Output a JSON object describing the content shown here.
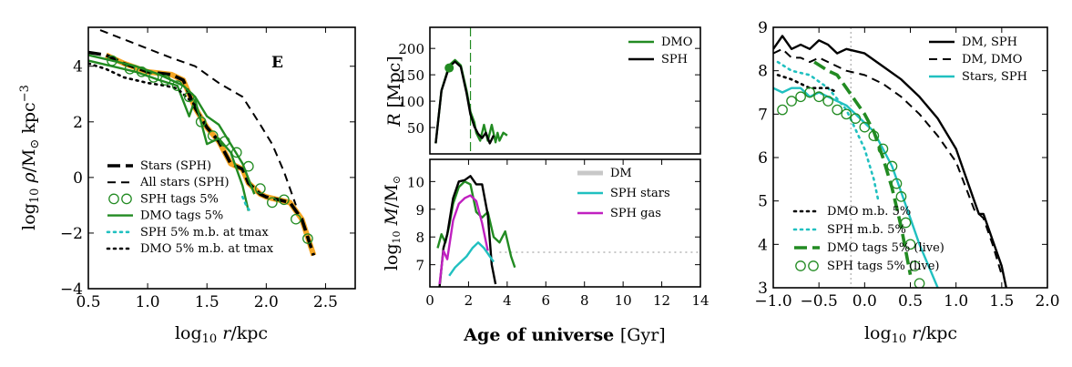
{
  "chart_data": [
    {
      "id": "density",
      "type": "line",
      "xlabel": "log10 r/kpc",
      "ylabel": "log10 ρ/M⊙ kpc−3",
      "annotation": "E",
      "xlim": [
        0.5,
        2.75
      ],
      "ylim": [
        -4,
        5.4
      ],
      "xticks": [
        0.5,
        1.0,
        1.5,
        2.0,
        2.5
      ],
      "xtick_labels": [
        "0.5",
        "1.0",
        "1.5",
        "2.0",
        "2.5"
      ],
      "yticks": [
        -4,
        -2,
        0,
        2,
        4
      ],
      "ytick_labels": [
        "−4",
        "−2",
        "0",
        "2",
        "4"
      ],
      "legend": [
        "Stars (SPH)",
        "All stars (SPH)",
        "SPH tags 5%",
        "DMO tags 5%",
        "SPH 5% m.b. at tmax",
        "DMO 5% m.b. at tmax"
      ],
      "series": [
        {
          "name": "All stars (SPH)",
          "style": "dashed",
          "color": "#000000",
          "x": [
            0.6,
            0.9,
            1.2,
            1.4,
            1.6,
            1.8,
            1.95,
            2.05,
            2.15,
            2.25
          ],
          "y": [
            5.3,
            4.8,
            4.3,
            4.0,
            3.4,
            2.9,
            1.9,
            1.2,
            0.2,
            -1.0
          ]
        },
        {
          "name": "Stars (SPH) highlight",
          "style": "solid-thick",
          "color": "#f5a623",
          "x": [
            0.65,
            0.8,
            1.0,
            1.2,
            1.3,
            1.4,
            1.5,
            1.6,
            1.7,
            1.8,
            1.85,
            1.95,
            2.0,
            2.1,
            2.2,
            2.3,
            2.4
          ],
          "y": [
            4.4,
            4.1,
            3.8,
            3.7,
            3.5,
            2.5,
            1.8,
            1.3,
            0.5,
            0.3,
            -0.2,
            -0.6,
            -0.7,
            -0.8,
            -0.9,
            -1.5,
            -2.8
          ]
        },
        {
          "name": "Stars (SPH)",
          "style": "dashed-thick",
          "color": "#000000",
          "x": [
            0.5,
            0.65,
            0.8,
            1.0,
            1.2,
            1.3,
            1.4,
            1.5,
            1.6,
            1.7,
            1.8,
            1.85,
            1.95,
            2.0,
            2.1,
            2.2,
            2.3,
            2.4
          ],
          "y": [
            4.5,
            4.4,
            4.1,
            3.8,
            3.7,
            3.5,
            2.5,
            1.8,
            1.3,
            0.5,
            0.3,
            -0.2,
            -0.6,
            -0.7,
            -0.8,
            -0.9,
            -1.5,
            -2.8
          ]
        },
        {
          "name": "DMO tags 5%",
          "style": "solid",
          "color": "#228b22",
          "x": [
            0.5,
            0.7,
            0.9,
            1.1,
            1.25,
            1.35,
            1.4,
            1.45,
            1.5,
            1.6,
            1.7,
            1.8,
            1.85
          ],
          "y": [
            4.2,
            4.0,
            3.8,
            3.5,
            3.3,
            2.2,
            2.8,
            2.0,
            1.2,
            1.4,
            0.9,
            -0.3,
            -1.2
          ]
        },
        {
          "name": "DMO tags 5% (b)",
          "style": "solid",
          "color": "#228b22",
          "x": [
            0.5,
            0.7,
            0.9,
            1.1,
            1.2,
            1.3,
            1.4,
            1.5,
            1.6,
            1.7,
            1.8,
            1.9
          ],
          "y": [
            4.4,
            4.2,
            4.0,
            3.7,
            3.5,
            3.3,
            2.9,
            2.2,
            1.9,
            1.2,
            0.5,
            -0.6
          ]
        },
        {
          "name": "DMO 5% m.b. at tmax",
          "style": "dotted",
          "color": "#000000",
          "x": [
            0.5,
            0.65,
            0.8,
            1.0,
            1.15,
            1.25,
            1.4
          ],
          "y": [
            4.1,
            3.9,
            3.6,
            3.4,
            3.3,
            3.2,
            2.6
          ]
        },
        {
          "name": "SPH 5% m.b. at tmax",
          "style": "dotted",
          "color": "#20c0c0",
          "x": [
            1.8,
            1.83,
            1.86
          ],
          "y": [
            -0.7,
            -1.0,
            -1.2
          ]
        },
        {
          "name": "SPH tags 5%",
          "style": "circles",
          "color": "#228b22",
          "x": [
            0.7,
            0.85,
            0.95,
            1.05,
            1.15,
            1.25,
            1.35,
            1.45,
            1.55,
            1.65,
            1.75,
            1.85,
            1.95,
            2.05,
            2.15,
            2.25,
            2.35
          ],
          "y": [
            4.2,
            3.9,
            3.8,
            3.6,
            3.5,
            3.3,
            2.9,
            2.0,
            1.5,
            1.3,
            0.9,
            0.4,
            -0.4,
            -0.9,
            -0.8,
            -1.5,
            -2.2
          ]
        }
      ]
    },
    {
      "id": "radius",
      "type": "line",
      "ylabel": "R [Mpc]",
      "xlim": [
        0,
        14
      ],
      "ylim": [
        0,
        240
      ],
      "yticks": [
        50,
        100,
        150,
        200
      ],
      "ytick_labels": [
        "50",
        "100",
        "150",
        "200"
      ],
      "legend": [
        "DMO",
        "SPH"
      ],
      "vline_x": 2.1,
      "marker": {
        "x": 1.0,
        "y": 163
      },
      "series": [
        {
          "name": "DMO",
          "style": "solid",
          "color": "#228b22",
          "x": [
            0.3,
            0.6,
            1.0,
            1.3,
            1.6,
            1.9,
            2.1,
            2.3,
            2.4,
            2.6,
            2.8,
            3.0,
            3.1,
            3.2,
            3.4,
            3.5,
            3.6,
            3.8,
            4.0
          ],
          "y": [
            20,
            120,
            168,
            178,
            168,
            120,
            80,
            60,
            40,
            25,
            55,
            25,
            40,
            55,
            22,
            40,
            25,
            40,
            35
          ]
        },
        {
          "name": "SPH",
          "style": "solid",
          "color": "#000000",
          "x": [
            0.3,
            0.6,
            1.0,
            1.3,
            1.6,
            1.9,
            2.1,
            2.3,
            2.5,
            2.7,
            2.9,
            3.1,
            3.3
          ],
          "y": [
            20,
            120,
            165,
            175,
            165,
            115,
            75,
            52,
            38,
            30,
            40,
            20,
            35
          ]
        }
      ]
    },
    {
      "id": "mass",
      "type": "line",
      "xlabel": "Age of universe [Gyr]",
      "ylabel": "log10 M/M⊙",
      "xlim": [
        0,
        14
      ],
      "ylim": [
        6.2,
        10.8
      ],
      "xticks": [
        0,
        2,
        4,
        6,
        8,
        10,
        12,
        14
      ],
      "xtick_labels": [
        "0",
        "2",
        "4",
        "6",
        "8",
        "10",
        "12",
        "14"
      ],
      "yticks": [
        7,
        8,
        9,
        10
      ],
      "ytick_labels": [
        "7",
        "8",
        "9",
        "10"
      ],
      "legend": [
        "DM",
        "SPH stars",
        "SPH gas"
      ],
      "series": [
        {
          "name": "DM",
          "style": "dotted-grey",
          "color": "#c8c8c8",
          "x": [
            3.6,
            14
          ],
          "y": [
            7.45,
            7.45
          ]
        },
        {
          "name": "DMO",
          "style": "solid",
          "color": "#228b22",
          "x": [
            0.4,
            0.6,
            0.8,
            1.0,
            1.2,
            1.5,
            1.8,
            2.1,
            2.4,
            2.7,
            3.0,
            3.3,
            3.6,
            3.9,
            4.2,
            4.4
          ],
          "y": [
            7.6,
            8.1,
            7.8,
            8.4,
            9.2,
            9.8,
            10.0,
            9.9,
            8.9,
            8.7,
            8.9,
            8.0,
            7.8,
            8.2,
            7.3,
            6.9
          ]
        },
        {
          "name": "SPH",
          "style": "solid",
          "color": "#000000",
          "x": [
            0.5,
            0.7,
            0.9,
            1.2,
            1.5,
            1.8,
            2.1,
            2.4,
            2.7,
            3.0,
            3.2,
            3.4
          ],
          "y": [
            6.2,
            7.6,
            8.1,
            9.4,
            10.0,
            10.05,
            10.2,
            9.9,
            9.9,
            8.8,
            7.0,
            6.3
          ]
        },
        {
          "name": "SPH gas",
          "style": "solid",
          "color": "#c020c0",
          "x": [
            0.5,
            0.7,
            0.9,
            1.2,
            1.5,
            1.8,
            2.1,
            2.4,
            2.7,
            3.0
          ],
          "y": [
            6.3,
            7.5,
            7.2,
            8.6,
            9.2,
            9.4,
            9.5,
            9.3,
            8.5,
            7.5
          ]
        },
        {
          "name": "SPH stars",
          "style": "solid",
          "color": "#20c0c0",
          "x": [
            1.0,
            1.3,
            1.6,
            1.9,
            2.2,
            2.5,
            2.8,
            3.1,
            3.3
          ],
          "y": [
            6.6,
            6.9,
            7.1,
            7.3,
            7.6,
            7.8,
            7.6,
            7.3,
            7.1
          ]
        }
      ]
    },
    {
      "id": "profile",
      "type": "line",
      "xlabel": "log10 r/kpc",
      "xlim": [
        -1.0,
        2.0
      ],
      "ylim": [
        3,
        9
      ],
      "xticks": [
        -1.0,
        -0.5,
        0.0,
        0.5,
        1.0,
        1.5,
        2.0
      ],
      "xtick_labels": [
        "−1.0",
        "−0.5",
        "0.0",
        "0.5",
        "1.0",
        "1.5",
        "2.0"
      ],
      "yticks": [
        3,
        4,
        5,
        6,
        7,
        8,
        9
      ],
      "ytick_labels": [
        "3",
        "4",
        "5",
        "6",
        "7",
        "8",
        "9"
      ],
      "legend": [
        "DM, SPH",
        "DM, DMO",
        "Stars, SPH",
        "DMO m.b. 5%",
        "SPH m.b. 5%",
        "DMO tags 5% (live)",
        "SPH tags 5% (live)"
      ],
      "vline_x": -0.15,
      "series": [
        {
          "name": "DM, SPH",
          "style": "solid",
          "color": "#000000",
          "x": [
            -1.0,
            -0.9,
            -0.8,
            -0.7,
            -0.6,
            -0.5,
            -0.4,
            -0.3,
            -0.2,
            0.0,
            0.2,
            0.4,
            0.6,
            0.8,
            1.0,
            1.2,
            1.25,
            1.3,
            1.4,
            1.5,
            1.55
          ],
          "y": [
            8.5,
            8.8,
            8.5,
            8.6,
            8.5,
            8.7,
            8.6,
            8.4,
            8.5,
            8.4,
            8.1,
            7.8,
            7.4,
            6.9,
            6.2,
            5.0,
            4.7,
            4.7,
            4.1,
            3.5,
            3.0
          ]
        },
        {
          "name": "DM, DMO",
          "style": "dashed",
          "color": "#000000",
          "x": [
            -1.0,
            -0.9,
            -0.8,
            -0.7,
            -0.6,
            -0.5,
            -0.4,
            -0.3,
            -0.2,
            0.0,
            0.2,
            0.4,
            0.6,
            0.8,
            1.0,
            1.2,
            1.3,
            1.4,
            1.5
          ],
          "y": [
            8.4,
            8.5,
            8.3,
            8.3,
            8.2,
            8.3,
            8.2,
            8.1,
            8.0,
            7.9,
            7.7,
            7.4,
            7.0,
            6.5,
            5.9,
            4.8,
            4.6,
            4.0,
            3.3
          ]
        },
        {
          "name": "Stars, SPH",
          "style": "solid",
          "color": "#20c0c0",
          "x": [
            -1.0,
            -0.9,
            -0.8,
            -0.7,
            -0.6,
            -0.5,
            -0.4,
            -0.3,
            -0.2,
            -0.1,
            0.0,
            0.1,
            0.2,
            0.3,
            0.4,
            0.5,
            0.6,
            0.7,
            0.8
          ],
          "y": [
            7.6,
            7.5,
            7.6,
            7.6,
            7.4,
            7.5,
            7.4,
            7.3,
            7.2,
            7.0,
            6.8,
            6.6,
            6.2,
            5.8,
            5.2,
            4.6,
            4.0,
            3.5,
            3.0
          ]
        },
        {
          "name": "DMO tags 5% (live)",
          "style": "dashed-thick",
          "color": "#228b22",
          "x": [
            -0.55,
            -0.4,
            -0.3,
            -0.2,
            -0.1,
            0.0,
            0.1,
            0.2,
            0.3,
            0.4,
            0.5
          ],
          "y": [
            8.2,
            8.0,
            7.9,
            7.6,
            7.3,
            7.0,
            6.6,
            6.0,
            5.3,
            4.4,
            3.3
          ]
        },
        {
          "name": "SPH m.b. 5%",
          "style": "dotted",
          "color": "#20c0c0",
          "x": [
            -0.95,
            -0.8,
            -0.6,
            -0.4,
            -0.2,
            0.0,
            0.1,
            0.15
          ],
          "y": [
            8.2,
            8.0,
            7.9,
            7.6,
            7.1,
            6.2,
            5.5,
            5.0
          ]
        },
        {
          "name": "DMO m.b. 5%",
          "style": "dotted",
          "color": "#000000",
          "x": [
            -0.95,
            -0.8,
            -0.6,
            -0.4,
            -0.3
          ],
          "y": [
            7.9,
            7.8,
            7.6,
            7.6,
            7.5
          ]
        },
        {
          "name": "SPH tags 5% (live)",
          "style": "circles",
          "color": "#228b22",
          "x": [
            -0.9,
            -0.8,
            -0.7,
            -0.6,
            -0.5,
            -0.4,
            -0.3,
            -0.2,
            -0.1,
            0.0,
            0.1,
            0.2,
            0.3,
            0.35,
            0.4,
            0.45,
            0.5,
            0.55,
            0.6
          ],
          "y": [
            7.1,
            7.3,
            7.4,
            7.5,
            7.4,
            7.3,
            7.1,
            7.0,
            6.9,
            6.7,
            6.5,
            6.2,
            5.8,
            5.4,
            5.1,
            4.5,
            4.0,
            3.5,
            3.1
          ]
        }
      ]
    }
  ]
}
